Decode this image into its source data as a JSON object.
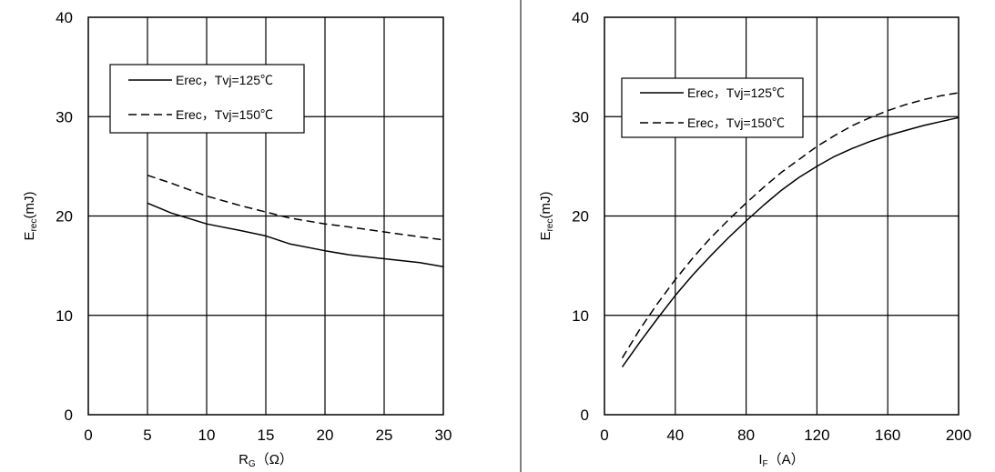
{
  "chart_data": [
    {
      "type": "line",
      "xlabel_main": "R",
      "xlabel_sub": "G",
      "xlabel_unit": "（Ω）",
      "ylabel_main": "E",
      "ylabel_sub": "rec",
      "ylabel_unit": "(mJ)",
      "xlim": [
        0,
        30
      ],
      "ylim": [
        0,
        40
      ],
      "xticks": [
        0,
        5,
        10,
        15,
        20,
        25,
        30
      ],
      "yticks": [
        0,
        10,
        20,
        30,
        40
      ],
      "grid": true,
      "legend_position": "top-left",
      "series": [
        {
          "name": "Erec，Tvj=125℃",
          "style": "solid",
          "x": [
            5,
            7,
            10,
            13,
            15,
            17,
            20,
            22,
            25,
            28,
            30
          ],
          "y": [
            21.3,
            20.3,
            19.2,
            18.5,
            18.0,
            17.2,
            16.5,
            16.1,
            15.7,
            15.3,
            14.9
          ]
        },
        {
          "name": "Erec，Tvj=150℃",
          "style": "dashed",
          "x": [
            5,
            7,
            10,
            13,
            15,
            17,
            20,
            22,
            25,
            28,
            30
          ],
          "y": [
            24.1,
            23.3,
            22.0,
            21.0,
            20.4,
            19.8,
            19.2,
            18.9,
            18.4,
            17.9,
            17.6
          ]
        }
      ]
    },
    {
      "type": "line",
      "xlabel_main": "I",
      "xlabel_sub": "F",
      "xlabel_unit": "（A）",
      "ylabel_main": "E",
      "ylabel_sub": "rec",
      "ylabel_unit": "(mJ)",
      "xlim": [
        0,
        200
      ],
      "ylim": [
        0,
        40
      ],
      "xticks": [
        0,
        40,
        80,
        120,
        160,
        200
      ],
      "yticks": [
        0,
        10,
        20,
        30,
        40
      ],
      "grid": true,
      "legend_position": "top-left",
      "series": [
        {
          "name": "Erec，Tvj=125℃",
          "style": "solid",
          "x": [
            10,
            20,
            30,
            40,
            50,
            60,
            70,
            80,
            90,
            100,
            110,
            120,
            130,
            140,
            150,
            160,
            170,
            180,
            190,
            200
          ],
          "y": [
            4.8,
            7.3,
            9.7,
            12.0,
            14.1,
            16.0,
            17.8,
            19.5,
            21.1,
            22.6,
            23.9,
            25.0,
            26.0,
            26.8,
            27.5,
            28.1,
            28.6,
            29.1,
            29.5,
            29.9
          ]
        },
        {
          "name": "Erec，Tvj=150℃",
          "style": "dashed",
          "x": [
            10,
            20,
            30,
            40,
            50,
            60,
            70,
            80,
            90,
            100,
            110,
            120,
            130,
            140,
            150,
            160,
            170,
            180,
            190,
            200
          ],
          "y": [
            5.7,
            8.6,
            11.2,
            13.6,
            15.8,
            17.8,
            19.6,
            21.3,
            22.9,
            24.4,
            25.7,
            27.0,
            28.1,
            29.1,
            29.9,
            30.6,
            31.2,
            31.7,
            32.1,
            32.4
          ]
        }
      ]
    }
  ]
}
